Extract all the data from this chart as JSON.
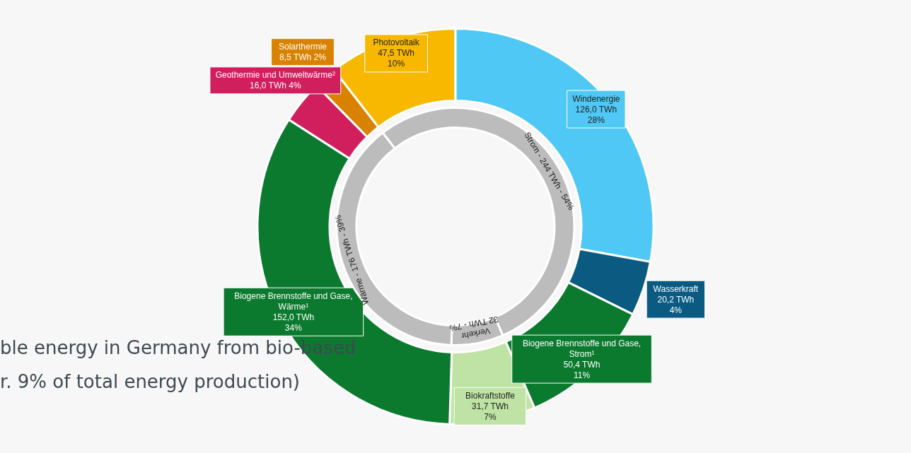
{
  "chart_data": [
    {
      "type": "donut",
      "categories": [
        "Photovoltaik",
        "Windenergie",
        "Wasserkraft",
        "Biogene Brennstoffe und Gase,\nStrom¹",
        "Biokraftstoffe",
        "Biogene Brennstoffe und Gase,\nWärme¹",
        "Geothermie und Umweltwärme²",
        "Solarthermie"
      ],
      "values": [
        47.5,
        126.0,
        20.2,
        50.4,
        31.7,
        152.0,
        16.0,
        8.5
      ],
      "colors": [
        "#f8b800",
        "#4fc8f5",
        "#0a5a82",
        "#0b7a2e",
        "#bfe3a4",
        "#0b7a2e",
        "#d01f5c",
        "#d98200"
      ],
      "value_labels": [
        "47,5 TWh\n10%",
        "126,0 TWh\n28%",
        "20,2 TWh\n4%",
        "50,4 TWh\n11%",
        "31,7 TWh\n7%",
        "152,0 TWh\n34%",
        "16,0 TWh 4%",
        "8,5 TWh 2%"
      ],
      "annotations": [
        "ble energy in Germany from bio-based",
        "r. 9% of total energy production)"
      ]
    },
    {
      "type": "donut",
      "categories": [
        "Strom - 244 TWh - 54%",
        "Verkehr\n32 TWh - 7%",
        "Wärme - 176 TWh - 39%"
      ],
      "values": [
        244,
        32,
        176
      ],
      "colors": [
        "#bcbcbc",
        "#bcbcbc",
        "#bcbcbc"
      ]
    }
  ]
}
